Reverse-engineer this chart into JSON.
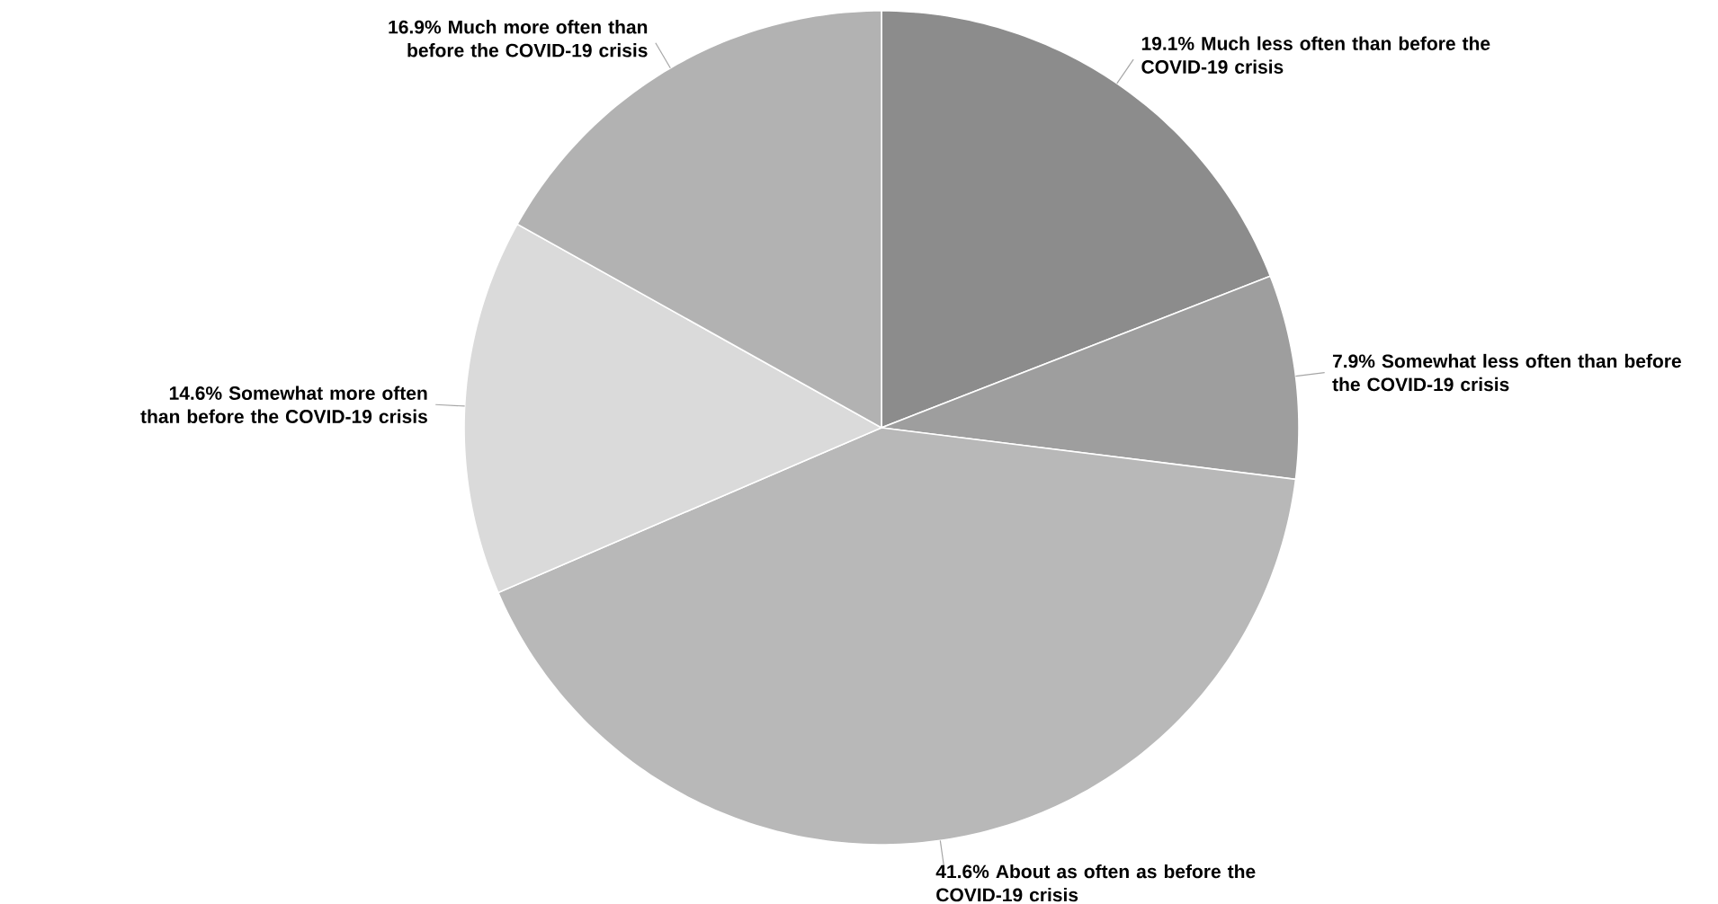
{
  "chart_data": {
    "type": "pie",
    "categories": [
      "Much less often than before the COVID-19 crisis",
      "Somewhat less often than before the COVID-19 crisis",
      "About as often as before the COVID-19 crisis",
      "Somewhat more often than before the COVID-19 crisis",
      "Much more often than before the COVID-19 crisis"
    ],
    "values": [
      19.1,
      7.9,
      41.6,
      14.6,
      16.9
    ],
    "value_labels": [
      "19.1%",
      "7.9%",
      "41.6%",
      "14.6%",
      "16.9%"
    ],
    "colors": [
      "#8c8c8c",
      "#9e9e9e",
      "#b8b8b8",
      "#dadada",
      "#b2b2b2"
    ]
  }
}
